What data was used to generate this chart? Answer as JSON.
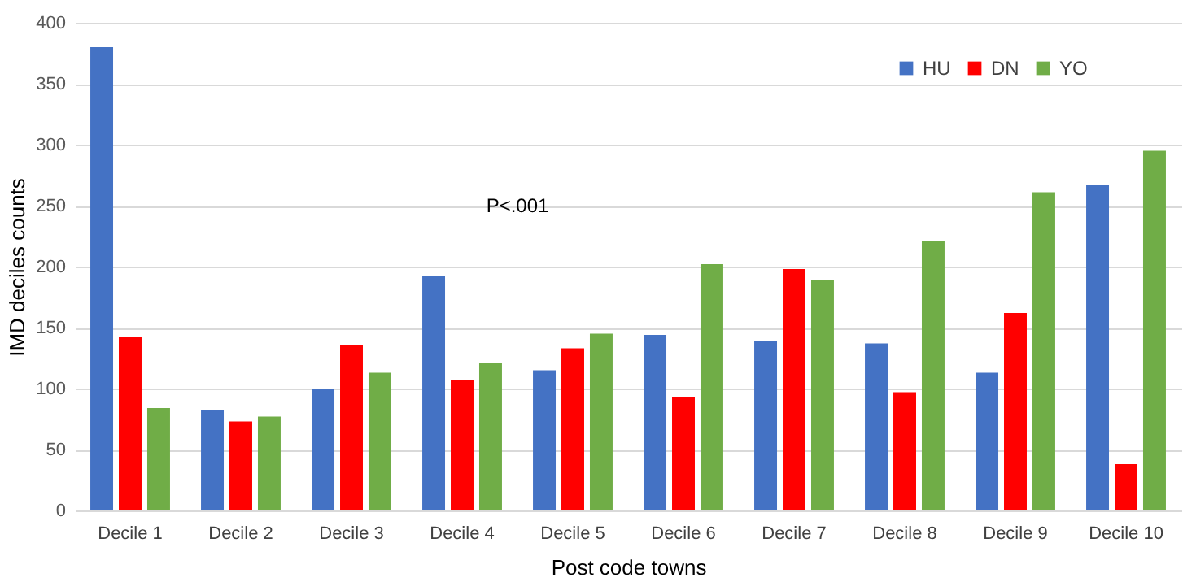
{
  "chart_data": {
    "type": "bar",
    "xlabel": "Post code towns",
    "ylabel": "IMD deciles counts",
    "categories": [
      "Decile 1",
      "Decile 2",
      "Decile 3",
      "Decile 4",
      "Decile 5",
      "Decile 6",
      "Decile 7",
      "Decile 8",
      "Decile 9",
      "Decile 10"
    ],
    "series": [
      {
        "name": "HU",
        "color": "#4472c4",
        "values": [
          380,
          82,
          100,
          192,
          115,
          144,
          139,
          137,
          113,
          267
        ]
      },
      {
        "name": "DN",
        "color": "#ff0000",
        "values": [
          142,
          73,
          136,
          107,
          133,
          93,
          198,
          97,
          162,
          38
        ]
      },
      {
        "name": "YO",
        "color": "#70ad47",
        "values": [
          84,
          77,
          113,
          121,
          145,
          202,
          189,
          221,
          261,
          295
        ]
      }
    ],
    "annotations": [
      "P<.001"
    ],
    "ylim": [
      0,
      400
    ],
    "yticks": [
      0,
      50,
      100,
      150,
      200,
      250,
      300,
      350,
      400
    ],
    "grid": "y",
    "legend": "top right"
  }
}
